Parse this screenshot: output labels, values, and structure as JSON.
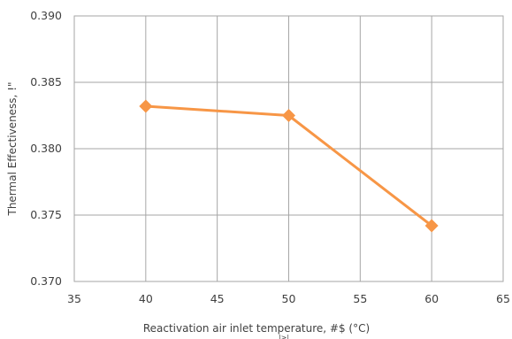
{
  "chart_data": {
    "type": "line",
    "xlabel": "Reactivation air inlet temperature, #$ (°C)",
    "xlabel_sub": "|>|",
    "ylabel": "Thermal Effectiveness, !\"",
    "x": [
      40,
      50,
      60
    ],
    "series": [
      {
        "values": [
          0.3832,
          0.3825,
          0.3742
        ],
        "color": "#f79646",
        "marker": "diamond"
      }
    ],
    "xlim": [
      35,
      65
    ],
    "ylim": [
      0.37,
      0.39
    ],
    "xticks": [
      35,
      40,
      45,
      50,
      55,
      60,
      65
    ],
    "yticks": [
      0.37,
      0.375,
      0.38,
      0.385,
      0.39
    ],
    "ytick_labels": [
      "0.370",
      "0.375",
      "0.380",
      "0.385",
      "0.390"
    ],
    "grid": true,
    "grid_color": "#a6a6a6"
  }
}
